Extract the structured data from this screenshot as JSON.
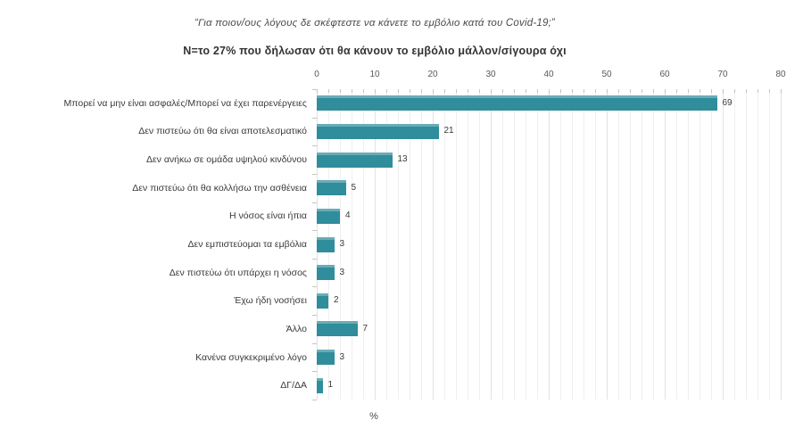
{
  "chart_data": {
    "type": "bar",
    "orientation": "horizontal",
    "title": "“Για ποιον/ους λόγους δε σκέφτεστε να κάνετε το εμβόλιο κατά του Covid-19;”",
    "subtitle": "Ν=το 27% που δήλωσαν ότι θα κάνουν το εμβόλιο μάλλον/σίγουρα όχι",
    "categories": [
      "Μπορεί να μην είναι ασφαλές/Μπορεί να έχει παρενέργειες",
      "Δεν πιστεύω ότι θα είναι αποτελεσματικό",
      "Δεν ανήκω σε ομάδα υψηλού κινδύνου",
      "Δεν πιστεύω ότι θα κολλήσω την ασθένεια",
      "Η νόσος είναι ήπια",
      "Δεν εμπιστεύομαι τα εμβόλια",
      "Δεν πιστεύω ότι υπάρχει η νόσος",
      "Έχω ήδη νοσήσει",
      "Άλλο",
      "Κανένα συγκεκριμένο λόγο",
      "ΔΓ/ΔΑ"
    ],
    "values": [
      69,
      21,
      13,
      5,
      4,
      3,
      3,
      2,
      7,
      3,
      1
    ],
    "xlabel": "%",
    "ylabel": "",
    "xlim": [
      0,
      80
    ],
    "xticks": [
      0,
      10,
      20,
      30,
      40,
      50,
      60,
      70,
      80
    ],
    "minor_grid_step": 2,
    "grid": true,
    "value_labels": true,
    "legend": "none"
  },
  "colors": {
    "bar": "#2F8D9C",
    "grid_minor": "#efefef",
    "grid_major": "#e2e2e2",
    "axis_tick": "#c4c4c4",
    "tick_text": "#595959",
    "label_text": "#3a3a3a",
    "title_text": "#4a4a4a",
    "subtitle_text": "#333333",
    "background": "#ffffff"
  }
}
